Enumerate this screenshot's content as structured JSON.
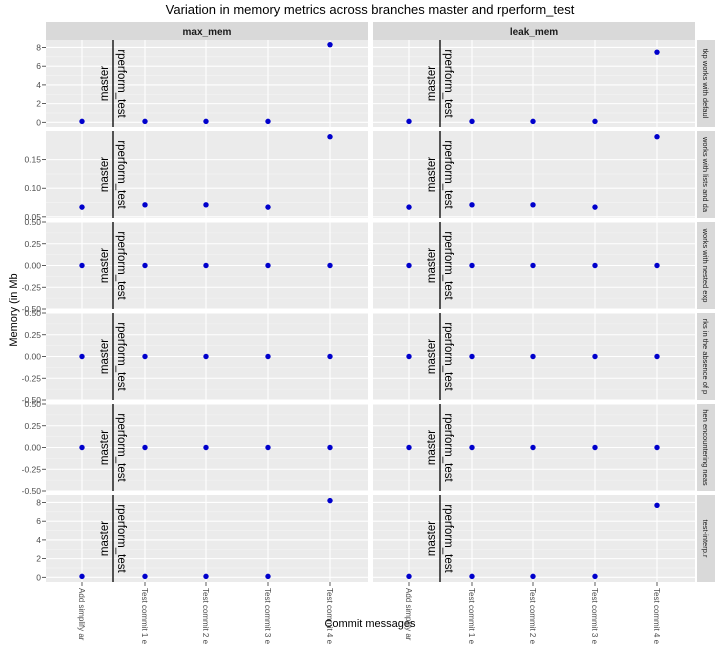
{
  "chart_data": {
    "type": "scatter",
    "title": "Variation in memory metrics across branches master and rperform_test",
    "xlabel": "Commit messages",
    "ylabel": "Memory (in Mb",
    "point_color": "#0000cc",
    "panel_bg": "#ebebeb",
    "strip_bg": "#d9d9d9",
    "columns": [
      "max_mem",
      "leak_mem"
    ],
    "x_categories": [
      "Add simplify ar",
      "Test commit 1 e",
      "Test commit 2 e",
      "Test commit 3 e",
      "Test commit 4 e"
    ],
    "branch_labels": [
      "master",
      "rperform_test"
    ],
    "rows": [
      {
        "label": "tkp works with defaul",
        "ylim": [
          -0.5,
          8.8
        ],
        "yticks": [
          {
            "v": 0,
            "t": "0"
          },
          {
            "v": 2,
            "t": "2"
          },
          {
            "v": 4,
            "t": "4"
          },
          {
            "v": 6,
            "t": "6"
          },
          {
            "v": 8,
            "t": "8"
          }
        ],
        "max_mem": [
          0.1,
          0.1,
          0.1,
          0.1,
          8.3
        ],
        "leak_mem": [
          0.1,
          0.1,
          0.1,
          0.1,
          7.5
        ]
      },
      {
        "label": "works with lists and da",
        "ylim": [
          0.048,
          0.2
        ],
        "yticks": [
          {
            "v": 0.05,
            "t": "0.05"
          },
          {
            "v": 0.1,
            "t": "0.10"
          },
          {
            "v": 0.15,
            "t": "0.15"
          }
        ],
        "max_mem": [
          0.067,
          0.071,
          0.071,
          0.067,
          0.19
        ],
        "leak_mem": [
          0.067,
          0.071,
          0.071,
          0.067,
          0.19
        ]
      },
      {
        "label": "works with nested exp",
        "ylim": [
          -0.5,
          0.5
        ],
        "yticks": [
          {
            "v": -0.5,
            "t": "-0.50"
          },
          {
            "v": -0.25,
            "t": "-0.25"
          },
          {
            "v": 0,
            "t": "0.00"
          },
          {
            "v": 0.25,
            "t": "0.25"
          },
          {
            "v": 0.5,
            "t": "0.50"
          }
        ],
        "max_mem": [
          0,
          0,
          0,
          0,
          0
        ],
        "leak_mem": [
          0,
          0,
          0,
          0,
          0
        ]
      },
      {
        "label": "rks in the absence of p",
        "ylim": [
          -0.5,
          0.5
        ],
        "yticks": [
          {
            "v": -0.5,
            "t": "-0.50"
          },
          {
            "v": -0.25,
            "t": "-0.25"
          },
          {
            "v": 0,
            "t": "0.00"
          },
          {
            "v": 0.25,
            "t": "0.25"
          },
          {
            "v": 0.5,
            "t": "0.50"
          }
        ],
        "max_mem": [
          0,
          0,
          0,
          0,
          0
        ],
        "leak_mem": [
          0,
          0,
          0,
          0,
          0
        ]
      },
      {
        "label": "hen encountering neas",
        "ylim": [
          -0.5,
          0.5
        ],
        "yticks": [
          {
            "v": -0.5,
            "t": "-0.50"
          },
          {
            "v": -0.25,
            "t": "-0.25"
          },
          {
            "v": 0,
            "t": "0.00"
          },
          {
            "v": 0.25,
            "t": "0.25"
          },
          {
            "v": 0.5,
            "t": "0.50"
          }
        ],
        "max_mem": [
          0,
          0,
          0,
          0,
          0
        ],
        "leak_mem": [
          0,
          0,
          0,
          0,
          0
        ]
      },
      {
        "label": "test-interp.r",
        "ylim": [
          -0.5,
          8.8
        ],
        "yticks": [
          {
            "v": 0,
            "t": "0"
          },
          {
            "v": 2,
            "t": "2"
          },
          {
            "v": 4,
            "t": "4"
          },
          {
            "v": 6,
            "t": "6"
          },
          {
            "v": 8,
            "t": "8"
          }
        ],
        "max_mem": [
          0.1,
          0.1,
          0.1,
          0.1,
          8.2
        ],
        "leak_mem": [
          0.1,
          0.1,
          0.1,
          0.1,
          7.7
        ]
      }
    ]
  }
}
